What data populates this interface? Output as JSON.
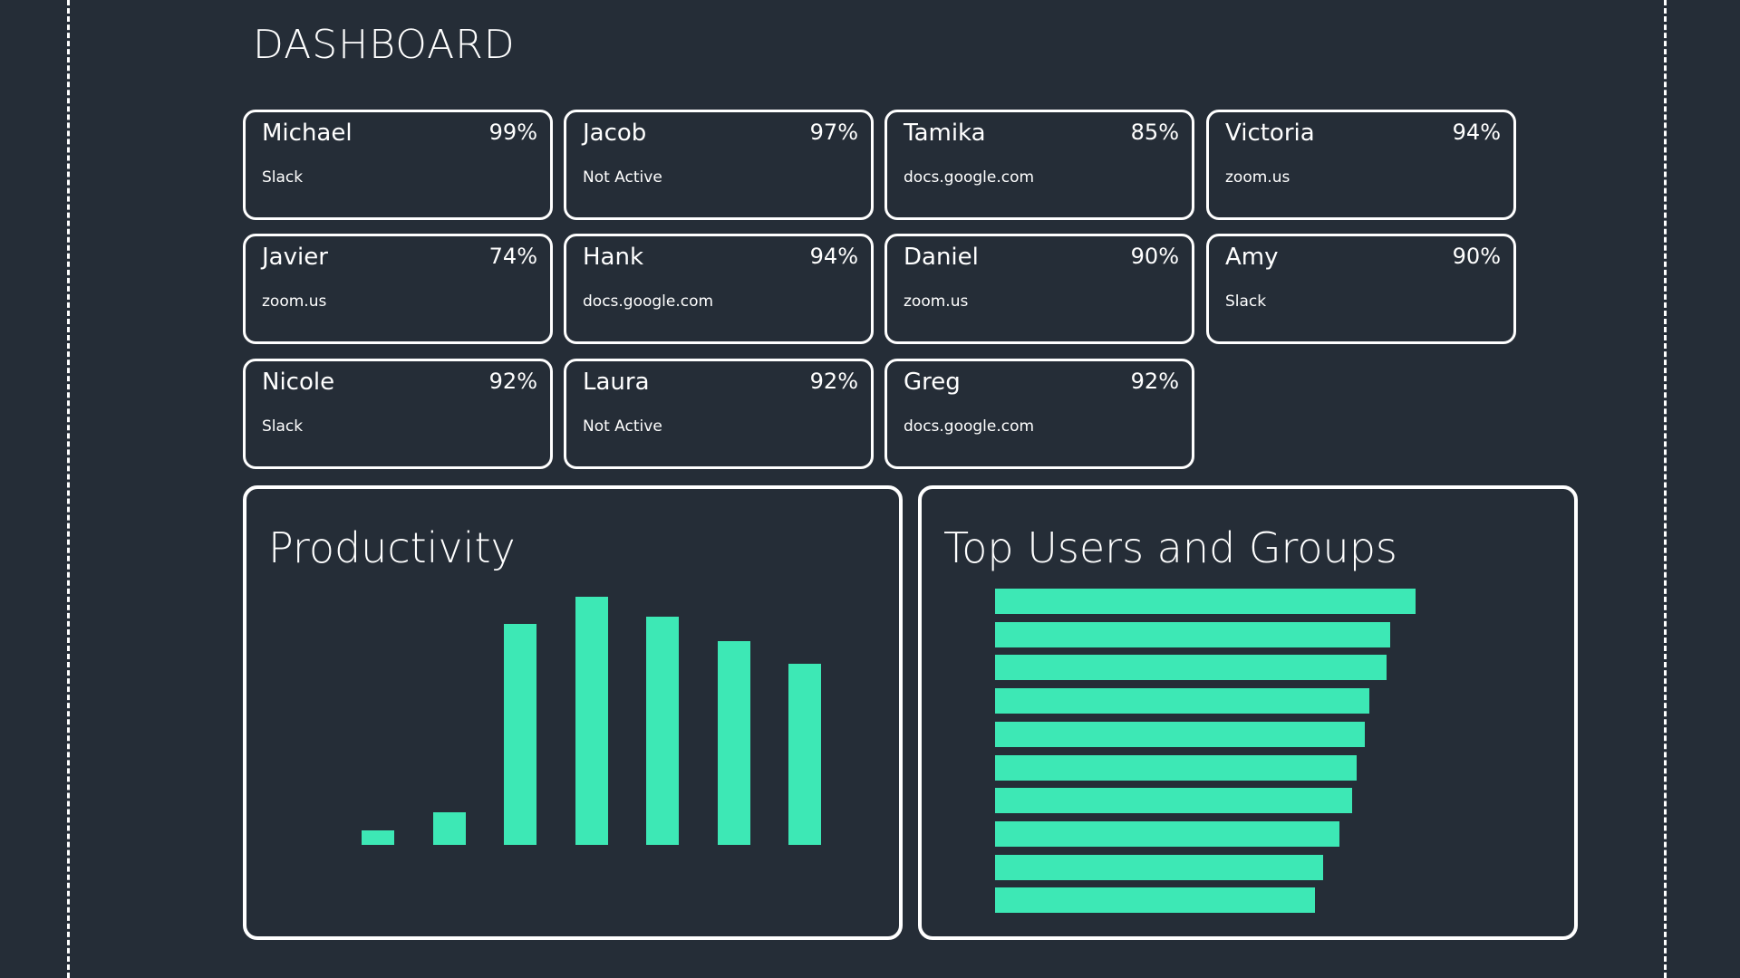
{
  "header": {
    "title": "DASHBOARD"
  },
  "accent_color": "#3de8b5",
  "users": [
    {
      "name": "Michael",
      "percent": "99%",
      "app": "Slack"
    },
    {
      "name": "Jacob",
      "percent": "97%",
      "app": "Not Active"
    },
    {
      "name": "Tamika",
      "percent": "85%",
      "app": "docs.google.com"
    },
    {
      "name": "Victoria",
      "percent": "94%",
      "app": "zoom.us"
    },
    {
      "name": "Javier",
      "percent": "74%",
      "app": "zoom.us"
    },
    {
      "name": "Hank",
      "percent": "94%",
      "app": "docs.google.com"
    },
    {
      "name": "Daniel",
      "percent": "90%",
      "app": "zoom.us"
    },
    {
      "name": "Amy",
      "percent": "90%",
      "app": "Slack"
    },
    {
      "name": "Nicole",
      "percent": "92%",
      "app": "Slack"
    },
    {
      "name": "Laura",
      "percent": "92%",
      "app": "Not Active"
    },
    {
      "name": "Greg",
      "percent": "92%",
      "app": "docs.google.com"
    }
  ],
  "chart_data": [
    {
      "type": "bar",
      "title": "Productivity",
      "orientation": "vertical",
      "values": [
        6,
        13,
        89,
        100,
        92,
        82,
        73
      ],
      "grid": false,
      "color": "#3de8b5"
    },
    {
      "type": "bar",
      "title": "Top Users and Groups",
      "orientation": "horizontal",
      "values": [
        100,
        94,
        93,
        89,
        88,
        86,
        85,
        82,
        78,
        76
      ],
      "grid": false,
      "color": "#3de8b5"
    }
  ]
}
